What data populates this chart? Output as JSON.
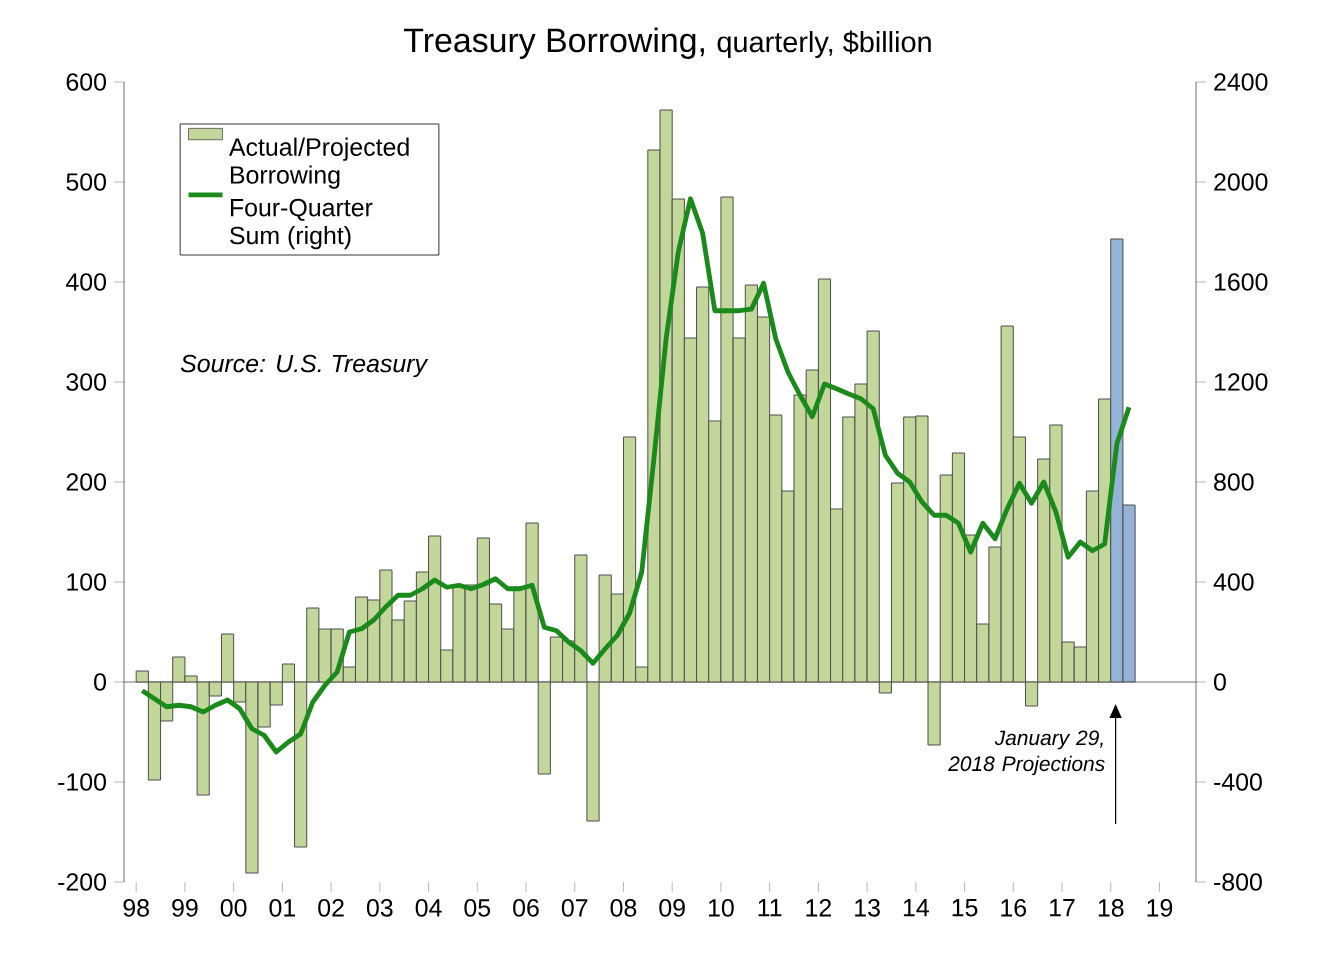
{
  "chart_data": {
    "type": "bar",
    "title": "Treasury Borrowing,",
    "subtitle": "quarterly, $billion",
    "x": [
      1998.125,
      1998.375,
      1998.625,
      1998.875,
      1999.125,
      1999.375,
      1999.625,
      1999.875,
      2000.125,
      2000.375,
      2000.625,
      2000.875,
      2001.125,
      2001.375,
      2001.625,
      2001.875,
      2002.125,
      2002.375,
      2002.625,
      2002.875,
      2003.125,
      2003.375,
      2003.625,
      2003.875,
      2004.125,
      2004.375,
      2004.625,
      2004.875,
      2005.125,
      2005.375,
      2005.625,
      2005.875,
      2006.125,
      2006.375,
      2006.625,
      2006.875,
      2007.125,
      2007.375,
      2007.625,
      2007.875,
      2008.125,
      2008.375,
      2008.625,
      2008.875,
      2009.125,
      2009.375,
      2009.625,
      2009.875,
      2010.125,
      2010.375,
      2010.625,
      2010.875,
      2011.125,
      2011.375,
      2011.625,
      2011.875,
      2012.125,
      2012.375,
      2012.625,
      2012.875,
      2013.125,
      2013.375,
      2013.625,
      2013.875,
      2014.125,
      2014.375,
      2014.625,
      2014.875,
      2015.125,
      2015.375,
      2015.625,
      2015.875,
      2016.125,
      2016.375,
      2016.625,
      2016.875,
      2017.125,
      2017.375,
      2017.625,
      2017.875,
      2018.125,
      2018.375
    ],
    "series": [
      {
        "name": "Actual/Projected Borrowing",
        "colors": [
          "#c4d79b",
          "#c4d79b",
          "#c4d79b",
          "#c4d79b",
          "#c4d79b",
          "#c4d79b",
          "#c4d79b",
          "#c4d79b",
          "#c4d79b",
          "#c4d79b",
          "#c4d79b",
          "#c4d79b",
          "#c4d79b",
          "#c4d79b",
          "#c4d79b",
          "#c4d79b",
          "#c4d79b",
          "#c4d79b",
          "#c4d79b",
          "#c4d79b",
          "#c4d79b",
          "#c4d79b",
          "#c4d79b",
          "#c4d79b",
          "#c4d79b",
          "#c4d79b",
          "#c4d79b",
          "#c4d79b",
          "#c4d79b",
          "#c4d79b",
          "#c4d79b",
          "#c4d79b",
          "#c4d79b",
          "#c4d79b",
          "#c4d79b",
          "#c4d79b",
          "#c4d79b",
          "#c4d79b",
          "#c4d79b",
          "#c4d79b",
          "#c4d79b",
          "#c4d79b",
          "#c4d79b",
          "#c4d79b",
          "#c4d79b",
          "#c4d79b",
          "#c4d79b",
          "#c4d79b",
          "#c4d79b",
          "#c4d79b",
          "#c4d79b",
          "#c4d79b",
          "#c4d79b",
          "#c4d79b",
          "#c4d79b",
          "#c4d79b",
          "#c4d79b",
          "#c4d79b",
          "#c4d79b",
          "#c4d79b",
          "#c4d79b",
          "#c4d79b",
          "#c4d79b",
          "#c4d79b",
          "#c4d79b",
          "#c4d79b",
          "#c4d79b",
          "#c4d79b",
          "#c4d79b",
          "#c4d79b",
          "#c4d79b",
          "#c4d79b",
          "#c4d79b",
          "#c4d79b",
          "#c4d79b",
          "#c4d79b",
          "#c4d79b",
          "#c4d79b",
          "#c4d79b",
          "#c4d79b",
          "#95b3d7",
          "#95b3d7"
        ],
        "values": [
          11,
          -98,
          -39,
          25,
          6,
          -113,
          -14,
          48,
          -20,
          -191,
          -45,
          -23,
          18,
          -165,
          74,
          53,
          53,
          15,
          85,
          82,
          112,
          62,
          81,
          110,
          146,
          32,
          95,
          97,
          144,
          78,
          53,
          95,
          159,
          -92,
          45,
          41,
          127,
          -139,
          107,
          88,
          245,
          15,
          532,
          572,
          483,
          344,
          395,
          261,
          485,
          344,
          397,
          365,
          267,
          191,
          287,
          312,
          403,
          173,
          265,
          298,
          351,
          -11,
          199,
          265,
          266,
          -63,
          207,
          229,
          147,
          58,
          135,
          356,
          245,
          -24,
          223,
          257,
          40,
          35,
          191,
          283,
          443,
          177
        ]
      },
      {
        "name": "Four-Quarter Sum (right)",
        "type": "line",
        "axis": "y2",
        "color": "#1a8a1a",
        "values": [
          -35,
          -67,
          -99,
          -93,
          -99,
          -120,
          -93,
          -72,
          -107,
          -187,
          -213,
          -280,
          -240,
          -208,
          -80,
          -13,
          40,
          200,
          213,
          248,
          301,
          347,
          347,
          373,
          408,
          379,
          387,
          373,
          390,
          413,
          373,
          373,
          387,
          219,
          205,
          160,
          125,
          75,
          133,
          187,
          275,
          440,
          893,
          1373,
          1720,
          1933,
          1795,
          1485,
          1485,
          1485,
          1491,
          1595,
          1373,
          1240,
          1147,
          1061,
          1192,
          1173,
          1152,
          1133,
          1093,
          907,
          835,
          800,
          720,
          667,
          667,
          635,
          520,
          635,
          573,
          693,
          795,
          715,
          800,
          680,
          499,
          560,
          525,
          552,
          952,
          1099
        ]
      }
    ],
    "xlim": [
      1997.75,
      2019.75
    ],
    "xticks": [
      {
        "value": 1998,
        "label": "98"
      },
      {
        "value": 1999,
        "label": "99"
      },
      {
        "value": 2000,
        "label": "00"
      },
      {
        "value": 2001,
        "label": "01"
      },
      {
        "value": 2002,
        "label": "02"
      },
      {
        "value": 2003,
        "label": "03"
      },
      {
        "value": 2004,
        "label": "04"
      },
      {
        "value": 2005,
        "label": "05"
      },
      {
        "value": 2006,
        "label": "06"
      },
      {
        "value": 2007,
        "label": "07"
      },
      {
        "value": 2008,
        "label": "08"
      },
      {
        "value": 2009,
        "label": "09"
      },
      {
        "value": 2010,
        "label": "10"
      },
      {
        "value": 2011,
        "label": "11"
      },
      {
        "value": 2012,
        "label": "12"
      },
      {
        "value": 2013,
        "label": "13"
      },
      {
        "value": 2014,
        "label": "14"
      },
      {
        "value": 2015,
        "label": "15"
      },
      {
        "value": 2016,
        "label": "16"
      },
      {
        "value": 2017,
        "label": "17"
      },
      {
        "value": 2018,
        "label": "18"
      },
      {
        "value": 2019,
        "label": "19"
      }
    ],
    "ylim": [
      -200,
      600
    ],
    "yticks": [
      -200,
      -100,
      0,
      100,
      200,
      300,
      400,
      500,
      600
    ],
    "y2lim": [
      -800,
      2400
    ],
    "y2ticks": [
      -800,
      -400,
      0,
      400,
      800,
      1200,
      1600,
      2000,
      2400
    ],
    "legend": "top left",
    "annotations": [
      "Source: U.S. Treasury",
      "January 29, 2018 Projections"
    ]
  }
}
